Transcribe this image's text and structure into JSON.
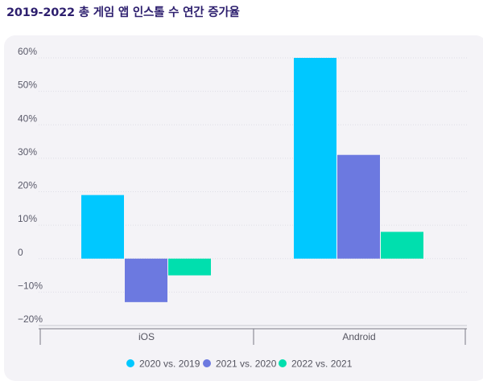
{
  "title": "2019-2022 총 게임 앱 인스톨 수 연간 증가율",
  "chart_data": {
    "type": "bar",
    "categories": [
      "iOS",
      "Android"
    ],
    "series": [
      {
        "name": "2020 vs. 2019",
        "color": "#00c8ff",
        "values": [
          19,
          60
        ]
      },
      {
        "name": "2021 vs. 2020",
        "color": "#6c79e0",
        "values": [
          -13,
          31
        ]
      },
      {
        "name": "2022 vs. 2021",
        "color": "#00dfae",
        "values": [
          -5,
          8
        ]
      }
    ],
    "y_ticks": [
      60,
      50,
      40,
      30,
      20,
      10,
      0,
      -10,
      -20
    ],
    "y_tick_labels": [
      "60%",
      "50%",
      "40%",
      "30%",
      "20%",
      "10%",
      "0",
      "−10%",
      "−20%"
    ],
    "ylim": [
      -20,
      60
    ],
    "grid": true,
    "legend_position": "bottom"
  }
}
